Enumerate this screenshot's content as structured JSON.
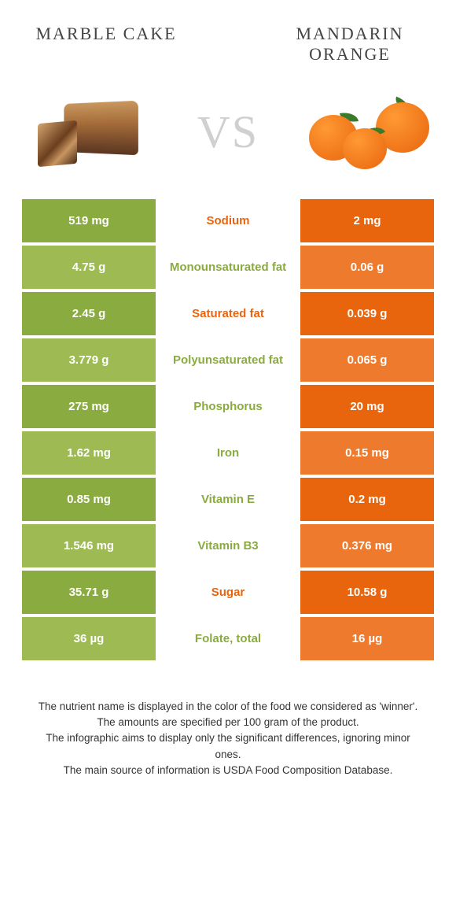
{
  "colors": {
    "green_dark": "#8aab3f",
    "green_light": "#9ebb53",
    "orange_dark": "#e8650d",
    "orange_light": "#ee7a2e",
    "label_green": "#8aab3f",
    "label_orange": "#e8650d"
  },
  "titles": {
    "left": "Marble cake",
    "right": "Mandarin\norange"
  },
  "vs_text": "VS",
  "rows": [
    {
      "left": "519 mg",
      "label": "Sodium",
      "right": "2 mg",
      "label_color": "orange"
    },
    {
      "left": "4.75 g",
      "label": "Monounsaturated fat",
      "right": "0.06 g",
      "label_color": "green"
    },
    {
      "left": "2.45 g",
      "label": "Saturated fat",
      "right": "0.039 g",
      "label_color": "orange"
    },
    {
      "left": "3.779 g",
      "label": "Polyunsaturated fat",
      "right": "0.065 g",
      "label_color": "green"
    },
    {
      "left": "275 mg",
      "label": "Phosphorus",
      "right": "20 mg",
      "label_color": "green"
    },
    {
      "left": "1.62 mg",
      "label": "Iron",
      "right": "0.15 mg",
      "label_color": "green"
    },
    {
      "left": "0.85 mg",
      "label": "Vitamin E",
      "right": "0.2 mg",
      "label_color": "green"
    },
    {
      "left": "1.546 mg",
      "label": "Vitamin B3",
      "right": "0.376 mg",
      "label_color": "green"
    },
    {
      "left": "35.71 g",
      "label": "Sugar",
      "right": "10.58 g",
      "label_color": "orange"
    },
    {
      "left": "36 µg",
      "label": "Folate, total",
      "right": "16 µg",
      "label_color": "green"
    }
  ],
  "footnote": {
    "l1": "The nutrient name is displayed in the color of the food we considered as 'winner'.",
    "l2": "The amounts are specified per 100 gram of the product.",
    "l3": "The infographic aims to display only the significant differences, ignoring minor ones.",
    "l4": "The main source of information is USDA Food Composition Database."
  }
}
